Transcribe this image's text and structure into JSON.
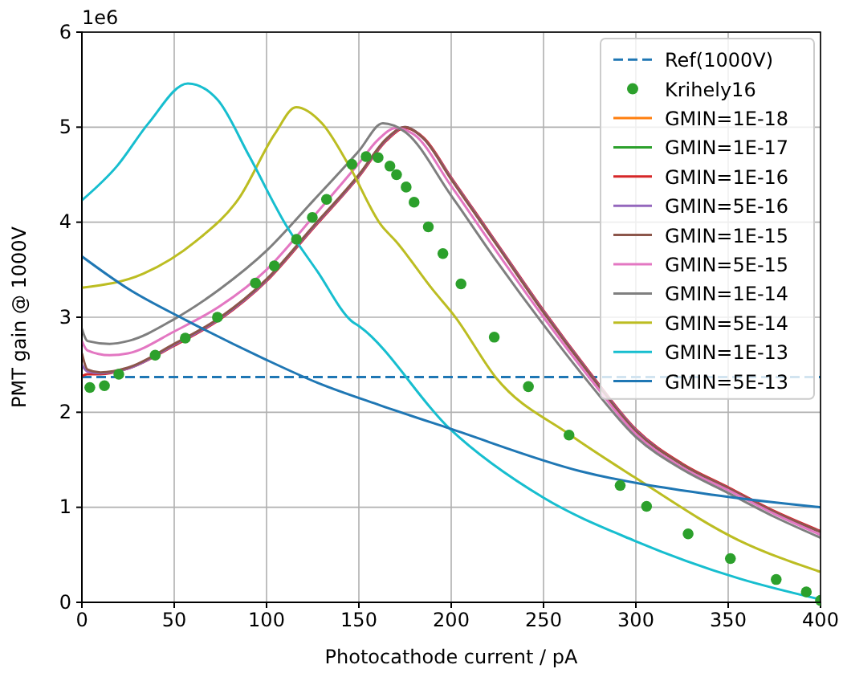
{
  "chart_data": {
    "type": "line",
    "xlabel": "Photocathode current / pA",
    "ylabel": "PMT gain @ 1000V",
    "annotations": [
      "1e6"
    ],
    "xlim": [
      0,
      400
    ],
    "xticks": [
      0,
      50,
      100,
      150,
      200,
      250,
      300,
      350,
      400
    ],
    "ylim": [
      0,
      6
    ],
    "yticks": [
      0,
      1,
      2,
      3,
      4,
      5,
      6
    ],
    "grid": true,
    "legend": "top right",
    "series": [
      {
        "name": "Ref(1000V)",
        "line_style": "dashed",
        "color": "#1f77b4",
        "x": [
          0,
          400
        ],
        "values": [
          2.37,
          2.37
        ]
      },
      {
        "name": "Krihely16",
        "type": "scatter",
        "marker": "circle",
        "color": "#2ca02c",
        "x": [
          4.3,
          12.2,
          20,
          39.7,
          56,
          73.4,
          94,
          104.2,
          116.2,
          124.8,
          132.5,
          146.2,
          153.9,
          160.4,
          166.8,
          170.4,
          175.6,
          179.9,
          187.6,
          195.5,
          205.3,
          223.3,
          241.8,
          263.8,
          291.5,
          305.8,
          328.3,
          351.2,
          376,
          392.3,
          400
        ],
        "values": [
          2.26,
          2.28,
          2.4,
          2.6,
          2.78,
          3.0,
          3.36,
          3.54,
          3.82,
          4.05,
          4.24,
          4.61,
          4.69,
          4.68,
          4.59,
          4.5,
          4.37,
          4.21,
          3.95,
          3.67,
          3.35,
          2.79,
          2.27,
          1.76,
          1.23,
          1.01,
          0.72,
          0.46,
          0.24,
          0.11,
          0.02
        ]
      },
      {
        "name": "GMIN=1E-18",
        "color": "#ff7f0e"
      },
      {
        "name": "GMIN=1E-17",
        "color": "#2ca02c"
      },
      {
        "name": "GMIN=1E-16",
        "color": "#d62728",
        "x": [
          0,
          3,
          10,
          25,
          50,
          75,
          100,
          125,
          150,
          165,
          175,
          185,
          200,
          225,
          250,
          275,
          300,
          325,
          350,
          375,
          400
        ],
        "values": [
          2.38,
          2.4,
          2.4,
          2.46,
          2.7,
          2.98,
          3.38,
          3.93,
          4.48,
          4.86,
          4.99,
          4.89,
          4.47,
          3.77,
          3.07,
          2.42,
          1.82,
          1.46,
          1.21,
          0.96,
          0.75
        ]
      },
      {
        "name": "GMIN=5E-16",
        "color": "#9467bd",
        "x": [
          0,
          3,
          10,
          25,
          50,
          75,
          100,
          125,
          150,
          165,
          175,
          185,
          200,
          225,
          250,
          275,
          300,
          325,
          350,
          375,
          400
        ],
        "values": [
          2.5,
          2.43,
          2.41,
          2.46,
          2.71,
          2.99,
          3.39,
          3.94,
          4.49,
          4.87,
          5.0,
          4.88,
          4.46,
          3.76,
          3.06,
          2.41,
          1.81,
          1.45,
          1.2,
          0.95,
          0.74
        ]
      },
      {
        "name": "GMIN=1E-15",
        "color": "#8c564b",
        "x": [
          0,
          3,
          10,
          25,
          50,
          75,
          100,
          125,
          150,
          165,
          175,
          185,
          200,
          225,
          250,
          275,
          300,
          325,
          350,
          375,
          400
        ],
        "values": [
          2.62,
          2.45,
          2.42,
          2.47,
          2.72,
          3.0,
          3.4,
          3.95,
          4.5,
          4.88,
          5.0,
          4.88,
          4.45,
          3.75,
          3.05,
          2.4,
          1.8,
          1.45,
          1.2,
          0.95,
          0.74
        ]
      },
      {
        "name": "GMIN=5E-15",
        "color": "#e377c2",
        "x": [
          0,
          3,
          15,
          25,
          50,
          75,
          100,
          125,
          150,
          160,
          170,
          180,
          200,
          225,
          250,
          275,
          300,
          325,
          350,
          375,
          400
        ],
        "values": [
          2.75,
          2.65,
          2.6,
          2.62,
          2.85,
          3.12,
          3.5,
          4.05,
          4.62,
          4.86,
          4.99,
          4.92,
          4.38,
          3.68,
          3.0,
          2.36,
          1.77,
          1.42,
          1.18,
          0.93,
          0.71
        ]
      },
      {
        "name": "GMIN=1E-14",
        "color": "#7f7f7f",
        "x": [
          0,
          3,
          15,
          25,
          50,
          75,
          100,
          125,
          150,
          163,
          175,
          200,
          225,
          250,
          275,
          300,
          325,
          350,
          375,
          400
        ],
        "values": [
          2.88,
          2.75,
          2.72,
          2.75,
          2.98,
          3.3,
          3.7,
          4.22,
          4.75,
          5.04,
          4.95,
          4.28,
          3.58,
          2.92,
          2.3,
          1.74,
          1.4,
          1.15,
          0.9,
          0.68
        ]
      },
      {
        "name": "GMIN=5E-14",
        "color": "#bcbd22",
        "x": [
          0,
          33.4,
          61.7,
          85,
          104.5,
          116,
          130,
          144.8,
          162,
          170,
          190,
          201.9,
          224.4,
          263.8,
          299,
          356,
          400
        ],
        "values": [
          3.31,
          3.46,
          3.8,
          4.25,
          4.93,
          5.21,
          5.04,
          4.59,
          3.97,
          3.8,
          3.29,
          3.01,
          2.36,
          1.77,
          1.32,
          0.65,
          0.32
        ]
      },
      {
        "name": "GMIN=1E-13",
        "color": "#17becf",
        "x": [
          0,
          19,
          36,
          57.4,
          73.4,
          90.5,
          110.5,
          127.6,
          146,
          150.5,
          199,
          250,
          299,
          356,
          400
        ],
        "values": [
          4.23,
          4.59,
          5.04,
          5.46,
          5.29,
          4.7,
          3.97,
          3.48,
          2.96,
          2.9,
          1.83,
          1.1,
          0.65,
          0.25,
          0.03
        ]
      },
      {
        "name": "GMIN=5E-13",
        "color": "#1f77b4",
        "x": [
          0,
          25,
          56.3,
          99,
          127.6,
          162,
          199,
          270,
          342,
          400
        ],
        "values": [
          3.64,
          3.3,
          2.97,
          2.56,
          2.31,
          2.07,
          1.83,
          1.38,
          1.13,
          1.0
        ]
      }
    ]
  }
}
